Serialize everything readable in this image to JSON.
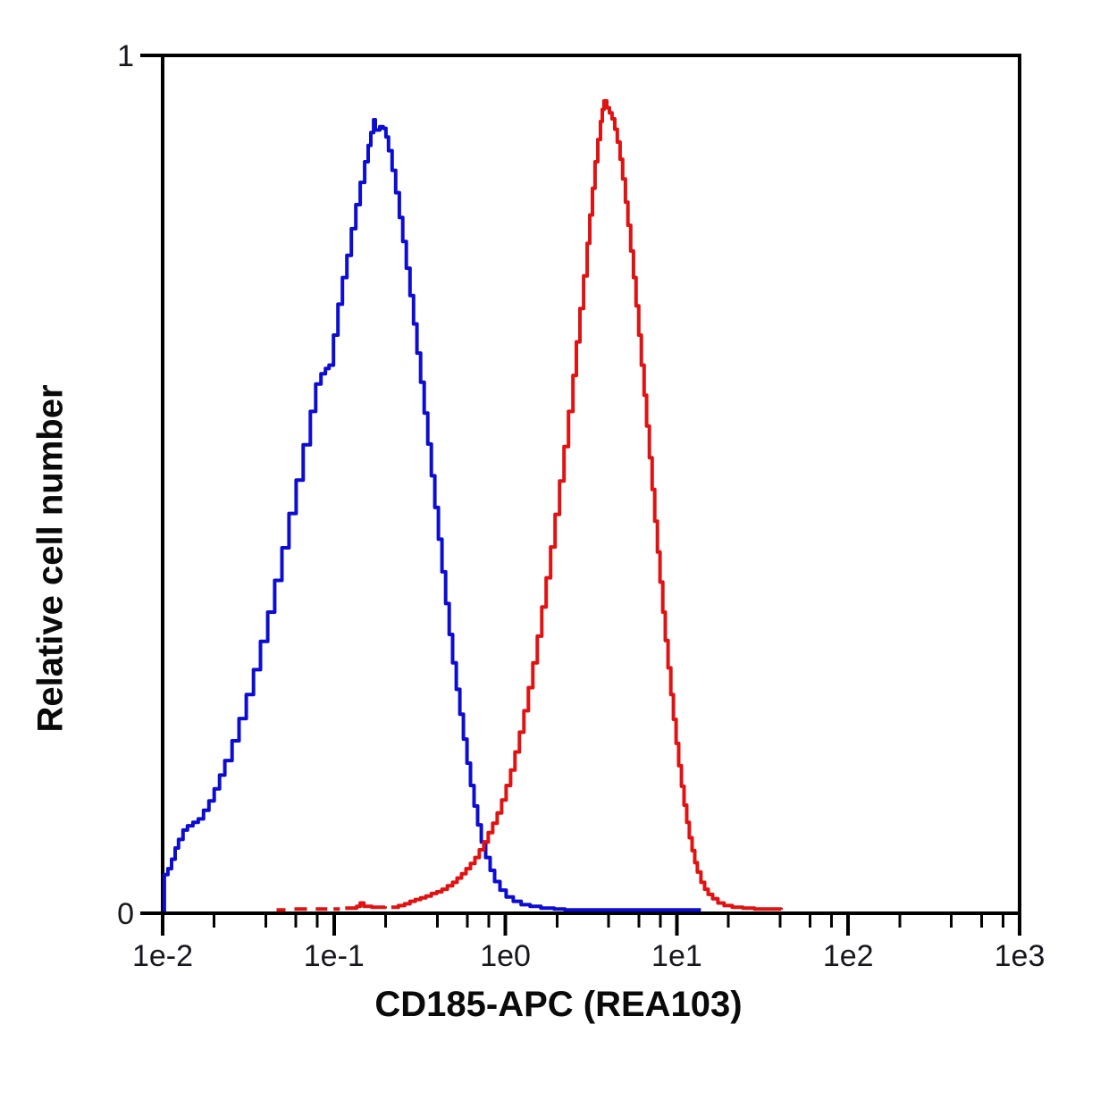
{
  "figure": {
    "background": "#ffffff",
    "description": "Flow cytometry overlay histogram with two populations on a log-scale fluorescence axis"
  },
  "chart_data": {
    "type": "line",
    "subtype": "flow-cytometry-histogram-overlay",
    "title": "",
    "xlabel": "CD185-APC (REA103)",
    "ylabel": "Relative cell number",
    "x_scale": "log10",
    "x_is_log10_in_points": true,
    "x_range_log10": [
      -2,
      3
    ],
    "y_range": [
      0,
      1
    ],
    "grid": false,
    "legend": "none",
    "axis_color": "#000000",
    "x_ticks": [
      {
        "label": "1e-2",
        "log10": -2
      },
      {
        "label": "1e-1",
        "log10": -1
      },
      {
        "label": "1e0",
        "log10": 0
      },
      {
        "label": "1e1",
        "log10": 1
      },
      {
        "label": "1e2",
        "log10": 2
      },
      {
        "label": "1e3",
        "log10": 3
      }
    ],
    "x_minor_subvalues": [
      2,
      4,
      6,
      8
    ],
    "y_ticks": [
      {
        "label": "1",
        "value": 1
      },
      {
        "label": "0",
        "value": 0
      }
    ],
    "series": [
      {
        "id": "blue",
        "name": "blue curve (left peak)",
        "color": "#0d0dd2",
        "peak_x_value": 0.17,
        "peak_log10_x": -0.77,
        "peak_y": 0.925,
        "segments": [
          [
            [
              -1.99,
              0.002
            ],
            [
              -1.99,
              0.045
            ],
            [
              -1.969,
              0.052
            ],
            [
              -1.948,
              0.063
            ],
            [
              -1.927,
              0.076
            ],
            [
              -1.907,
              0.086
            ],
            [
              -1.881,
              0.097
            ],
            [
              -1.855,
              0.102
            ],
            [
              -1.823,
              0.106
            ],
            [
              -1.792,
              0.11
            ],
            [
              -1.761,
              0.12
            ],
            [
              -1.73,
              0.131
            ],
            [
              -1.699,
              0.145
            ],
            [
              -1.668,
              0.161
            ],
            [
              -1.637,
              0.178
            ],
            [
              -1.595,
              0.201
            ],
            [
              -1.554,
              0.227
            ],
            [
              -1.512,
              0.255
            ],
            [
              -1.47,
              0.284
            ],
            [
              -1.429,
              0.317
            ],
            [
              -1.387,
              0.351
            ],
            [
              -1.346,
              0.388
            ],
            [
              -1.304,
              0.426
            ],
            [
              -1.263,
              0.466
            ],
            [
              -1.221,
              0.505
            ],
            [
              -1.18,
              0.546
            ],
            [
              -1.138,
              0.585
            ],
            [
              -1.107,
              0.617
            ],
            [
              -1.076,
              0.629
            ],
            [
              -1.05,
              0.635
            ],
            [
              -1.029,
              0.639
            ],
            [
              -1.003,
              0.674
            ],
            [
              -0.977,
              0.71
            ],
            [
              -0.951,
              0.741
            ],
            [
              -0.925,
              0.767
            ],
            [
              -0.899,
              0.798
            ],
            [
              -0.873,
              0.826
            ],
            [
              -0.847,
              0.852
            ],
            [
              -0.821,
              0.876
            ],
            [
              -0.801,
              0.895
            ],
            [
              -0.785,
              0.91
            ],
            [
              -0.769,
              0.925
            ],
            [
              -0.759,
              0.913
            ],
            [
              -0.733,
              0.917
            ],
            [
              -0.713,
              0.915
            ],
            [
              -0.697,
              0.905
            ],
            [
              -0.682,
              0.889
            ],
            [
              -0.661,
              0.866
            ],
            [
              -0.64,
              0.84
            ],
            [
              -0.619,
              0.811
            ],
            [
              -0.599,
              0.783
            ],
            [
              -0.578,
              0.752
            ],
            [
              -0.557,
              0.72
            ],
            [
              -0.536,
              0.687
            ],
            [
              -0.516,
              0.653
            ],
            [
              -0.495,
              0.619
            ],
            [
              -0.474,
              0.583
            ],
            [
              -0.453,
              0.547
            ],
            [
              -0.432,
              0.51
            ],
            [
              -0.412,
              0.473
            ],
            [
              -0.391,
              0.436
            ],
            [
              -0.37,
              0.398
            ],
            [
              -0.349,
              0.361
            ],
            [
              -0.328,
              0.325
            ],
            [
              -0.308,
              0.292
            ],
            [
              -0.287,
              0.261
            ],
            [
              -0.266,
              0.232
            ],
            [
              -0.245,
              0.203
            ],
            [
              -0.224,
              0.175
            ],
            [
              -0.204,
              0.149
            ],
            [
              -0.183,
              0.125
            ],
            [
              -0.162,
              0.103
            ],
            [
              -0.141,
              0.083
            ],
            [
              -0.115,
              0.065
            ],
            [
              -0.089,
              0.05
            ],
            [
              -0.063,
              0.037
            ],
            [
              -0.032,
              0.027
            ],
            [
              0.004,
              0.019
            ],
            [
              0.046,
              0.014
            ],
            [
              0.092,
              0.01
            ],
            [
              0.144,
              0.008
            ],
            [
              0.207,
              0.006
            ],
            [
              0.284,
              0.005
            ],
            [
              0.347,
              0.004
            ],
            [
              0.7,
              0.004
            ],
            [
              1.141,
              0.004
            ]
          ]
        ]
      },
      {
        "id": "red",
        "name": "red curve (right peak)",
        "color": "#e01212",
        "peak_x_value": 3.7,
        "peak_log10_x": 0.575,
        "peak_y": 0.947,
        "segments": [
          [
            [
              -0.666,
              0.007
            ],
            [
              -0.624,
              0.009
            ],
            [
              -0.588,
              0.011
            ],
            [
              -0.557,
              0.014
            ],
            [
              -0.526,
              0.016
            ],
            [
              -0.495,
              0.018
            ],
            [
              -0.464,
              0.02
            ],
            [
              -0.432,
              0.023
            ],
            [
              -0.401,
              0.025
            ],
            [
              -0.37,
              0.028
            ],
            [
              -0.339,
              0.032
            ],
            [
              -0.308,
              0.036
            ],
            [
              -0.282,
              0.041
            ],
            [
              -0.256,
              0.046
            ],
            [
              -0.23,
              0.052
            ],
            [
              -0.204,
              0.058
            ],
            [
              -0.178,
              0.065
            ],
            [
              -0.152,
              0.074
            ],
            [
              -0.126,
              0.083
            ],
            [
              -0.1,
              0.094
            ],
            [
              -0.074,
              0.105
            ],
            [
              -0.048,
              0.117
            ],
            [
              -0.022,
              0.132
            ],
            [
              0.004,
              0.149
            ],
            [
              0.03,
              0.167
            ],
            [
              0.056,
              0.188
            ],
            [
              0.082,
              0.211
            ],
            [
              0.108,
              0.236
            ],
            [
              0.134,
              0.263
            ],
            [
              0.16,
              0.292
            ],
            [
              0.186,
              0.323
            ],
            [
              0.212,
              0.357
            ],
            [
              0.238,
              0.391
            ],
            [
              0.264,
              0.427
            ],
            [
              0.29,
              0.465
            ],
            [
              0.316,
              0.504
            ],
            [
              0.342,
              0.544
            ],
            [
              0.368,
              0.585
            ],
            [
              0.394,
              0.627
            ],
            [
              0.414,
              0.666
            ],
            [
              0.435,
              0.705
            ],
            [
              0.456,
              0.743
            ],
            [
              0.477,
              0.781
            ],
            [
              0.492,
              0.814
            ],
            [
              0.508,
              0.845
            ],
            [
              0.523,
              0.876
            ],
            [
              0.539,
              0.902
            ],
            [
              0.555,
              0.923
            ],
            [
              0.565,
              0.937
            ],
            [
              0.575,
              0.947
            ],
            [
              0.591,
              0.939
            ],
            [
              0.607,
              0.933
            ],
            [
              0.622,
              0.926
            ],
            [
              0.638,
              0.914
            ],
            [
              0.653,
              0.899
            ],
            [
              0.669,
              0.879
            ],
            [
              0.684,
              0.856
            ],
            [
              0.7,
              0.829
            ],
            [
              0.715,
              0.802
            ],
            [
              0.731,
              0.772
            ],
            [
              0.747,
              0.741
            ],
            [
              0.762,
              0.708
            ],
            [
              0.778,
              0.674
            ],
            [
              0.793,
              0.639
            ],
            [
              0.809,
              0.604
            ],
            [
              0.824,
              0.568
            ],
            [
              0.84,
              0.531
            ],
            [
              0.856,
              0.494
            ],
            [
              0.871,
              0.457
            ],
            [
              0.887,
              0.421
            ],
            [
              0.902,
              0.386
            ],
            [
              0.918,
              0.351
            ],
            [
              0.933,
              0.318
            ],
            [
              0.949,
              0.286
            ],
            [
              0.965,
              0.255
            ],
            [
              0.98,
              0.226
            ],
            [
              0.996,
              0.198
            ],
            [
              1.011,
              0.172
            ],
            [
              1.027,
              0.148
            ],
            [
              1.042,
              0.126
            ],
            [
              1.058,
              0.106
            ],
            [
              1.073,
              0.088
            ],
            [
              1.089,
              0.073
            ],
            [
              1.105,
              0.059
            ],
            [
              1.12,
              0.048
            ],
            [
              1.141,
              0.036
            ],
            [
              1.162,
              0.028
            ],
            [
              1.183,
              0.022
            ],
            [
              1.209,
              0.017
            ],
            [
              1.24,
              0.012
            ],
            [
              1.276,
              0.009
            ],
            [
              1.323,
              0.007
            ],
            [
              1.385,
              0.006
            ],
            [
              1.453,
              0.005
            ],
            [
              1.608,
              0.004
            ]
          ],
          [
            [
              -1.335,
              0.004
            ],
            [
              -1.283,
              0.004
            ]
          ],
          [
            [
              -1.231,
              0.005
            ],
            [
              -1.158,
              0.005
            ]
          ],
          [
            [
              -1.107,
              0.005
            ],
            [
              -1.039,
              0.005
            ]
          ],
          [
            [
              -1.003,
              0.005
            ],
            [
              -0.966,
              0.005
            ]
          ],
          [
            [
              -0.935,
              0.006
            ],
            [
              -0.868,
              0.008
            ],
            [
              -0.847,
              0.012
            ],
            [
              -0.826,
              0.008
            ],
            [
              -0.78,
              0.007
            ],
            [
              -0.702,
              0.008
            ]
          ]
        ]
      }
    ]
  }
}
